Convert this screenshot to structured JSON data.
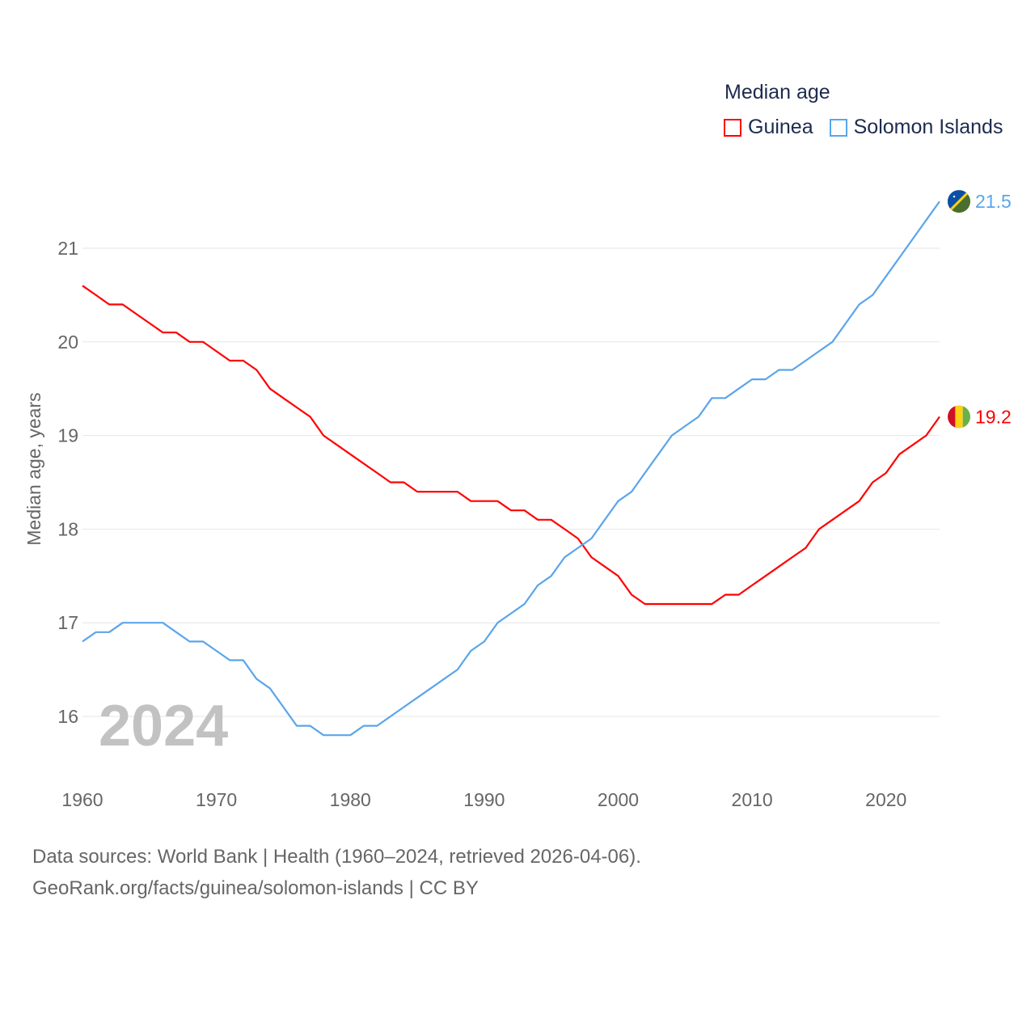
{
  "chart_data": {
    "type": "line",
    "title": "Median age",
    "xlabel": "",
    "ylabel": "Median age, years",
    "xlim": [
      1960,
      2024
    ],
    "ylim": [
      15.5,
      21.7
    ],
    "x_ticks": [
      "1960",
      "1970",
      "1980",
      "1990",
      "2000",
      "2010",
      "2020"
    ],
    "y_ticks": [
      "16",
      "17",
      "18",
      "19",
      "20",
      "21"
    ],
    "grid": true,
    "legend_placement": "top-right",
    "year_label": "2024",
    "x": [
      1960,
      1961,
      1962,
      1963,
      1964,
      1965,
      1966,
      1967,
      1968,
      1969,
      1970,
      1971,
      1972,
      1973,
      1974,
      1975,
      1976,
      1977,
      1978,
      1979,
      1980,
      1981,
      1982,
      1983,
      1984,
      1985,
      1986,
      1987,
      1988,
      1989,
      1990,
      1991,
      1992,
      1993,
      1994,
      1995,
      1996,
      1997,
      1998,
      1999,
      2000,
      2001,
      2002,
      2003,
      2004,
      2005,
      2006,
      2007,
      2008,
      2009,
      2010,
      2011,
      2012,
      2013,
      2014,
      2015,
      2016,
      2017,
      2018,
      2019,
      2020,
      2021,
      2022,
      2023,
      2024
    ],
    "series": [
      {
        "name": "Guinea",
        "color": "#ff0000",
        "end_label": "19.2",
        "values": [
          20.6,
          20.5,
          20.4,
          20.4,
          20.3,
          20.2,
          20.1,
          20.1,
          20.0,
          20.0,
          19.9,
          19.8,
          19.8,
          19.7,
          19.5,
          19.4,
          19.3,
          19.2,
          19.0,
          18.9,
          18.8,
          18.7,
          18.6,
          18.5,
          18.5,
          18.4,
          18.4,
          18.4,
          18.4,
          18.3,
          18.3,
          18.3,
          18.2,
          18.2,
          18.1,
          18.1,
          18.0,
          17.9,
          17.7,
          17.6,
          17.5,
          17.3,
          17.2,
          17.2,
          17.2,
          17.2,
          17.2,
          17.2,
          17.3,
          17.3,
          17.4,
          17.5,
          17.6,
          17.7,
          17.8,
          18.0,
          18.1,
          18.2,
          18.3,
          18.5,
          18.6,
          18.8,
          18.9,
          19.0,
          19.2
        ]
      },
      {
        "name": "Solomon Islands",
        "color": "#5aa5eb",
        "end_label": "21.5",
        "values": [
          16.8,
          16.9,
          16.9,
          17.0,
          17.0,
          17.0,
          17.0,
          16.9,
          16.8,
          16.8,
          16.7,
          16.6,
          16.6,
          16.4,
          16.3,
          16.1,
          15.9,
          15.9,
          15.8,
          15.8,
          15.8,
          15.9,
          15.9,
          16.0,
          16.1,
          16.2,
          16.3,
          16.4,
          16.5,
          16.7,
          16.8,
          17.0,
          17.1,
          17.2,
          17.4,
          17.5,
          17.7,
          17.8,
          17.9,
          18.1,
          18.3,
          18.4,
          18.6,
          18.8,
          19.0,
          19.1,
          19.2,
          19.4,
          19.4,
          19.5,
          19.6,
          19.6,
          19.7,
          19.7,
          19.8,
          19.9,
          20.0,
          20.2,
          20.4,
          20.5,
          20.7,
          20.9,
          21.1,
          21.3,
          21.5
        ]
      }
    ]
  },
  "footer": {
    "line1": "Data sources: World Bank | Health (1960–2024, retrieved 2026-04-06).",
    "line2": "GeoRank.org/facts/guinea/solomon-islands | CC BY"
  }
}
